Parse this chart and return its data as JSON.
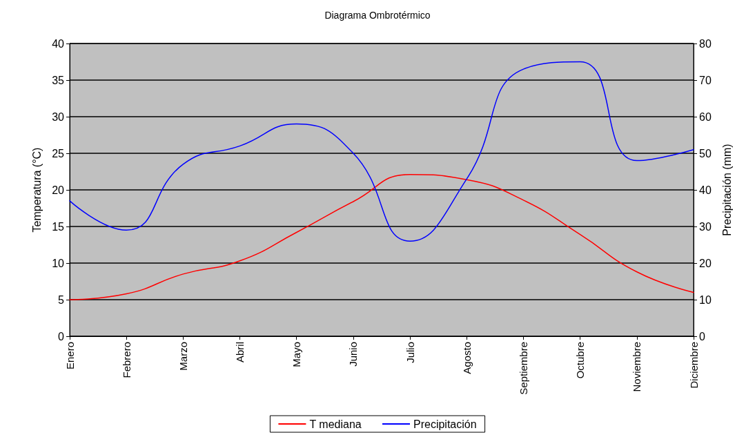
{
  "chart_data": {
    "type": "line",
    "title": "Diagrama Ombrotérmico",
    "ylabel": "Temperatura (°C)",
    "y2label": "Precipitación (mm)",
    "categories": [
      "Enero",
      "Febrero",
      "Marzo",
      "Abril",
      "Mayo",
      "Junio",
      "Julio",
      "Agosto",
      "Septiembre",
      "Octubre",
      "Noviembre",
      "Diciembre"
    ],
    "series": [
      {
        "name": "T mediana",
        "color": "#ff0000",
        "values": [
          5,
          5.8,
          8.5,
          10.3,
          14.2,
          18.4,
          22.1,
          21.4,
          18.6,
          13.9,
          8.8,
          6
        ]
      },
      {
        "name": "Precipitación",
        "color": "#0000ff",
        "axis": "y2",
        "values": [
          37,
          29,
          47,
          52,
          58,
          50,
          26,
          43,
          73,
          75,
          48,
          51
        ]
      }
    ],
    "ylim": [
      0,
      40
    ],
    "yticks": [
      0,
      5,
      10,
      15,
      20,
      25,
      30,
      35,
      40
    ],
    "y2lim": [
      0,
      80
    ],
    "y2ticks": [
      0,
      10,
      20,
      30,
      40,
      50,
      60,
      70,
      80
    ],
    "grid": "y",
    "legend": "bottom",
    "marker": "none",
    "line_style": "solid"
  }
}
